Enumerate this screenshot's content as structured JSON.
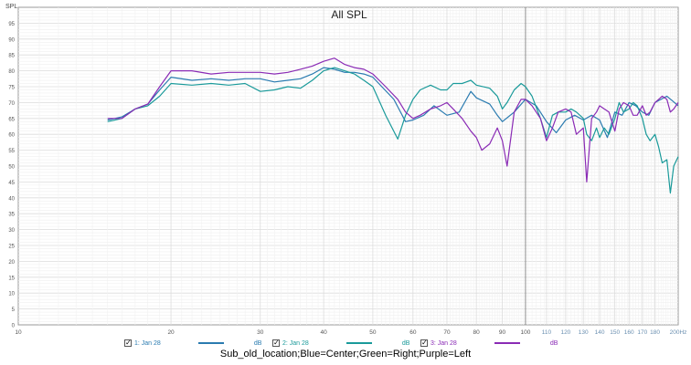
{
  "chart_data": {
    "type": "line",
    "title": "All SPL",
    "ylabel": "SPL",
    "x_unit": "Hz",
    "x_scale": "log",
    "xlim": [
      10,
      200
    ],
    "ylim": [
      0,
      100
    ],
    "grid": true,
    "x_ticks": [
      10,
      20,
      30,
      40,
      50,
      60,
      70,
      80,
      90,
      100,
      110,
      120,
      130,
      140,
      150,
      160,
      170,
      180,
      200
    ],
    "x_tick_labels": [
      "10",
      "20",
      "30",
      "40",
      "50",
      "60",
      "70",
      "80",
      "90",
      "100",
      "110",
      "120",
      "130",
      "140",
      "150",
      "160",
      "170",
      "180",
      "200Hz"
    ],
    "y_ticks": [
      0,
      5,
      10,
      15,
      20,
      25,
      30,
      35,
      40,
      45,
      50,
      55,
      60,
      65,
      70,
      75,
      80,
      85,
      90,
      95
    ],
    "series": [
      {
        "name": "1: Jan 28",
        "color": "#2a7bb0",
        "unit": "dB",
        "x": [
          15,
          16,
          17,
          18,
          19,
          20,
          22,
          24,
          26,
          28,
          30,
          32,
          34,
          36,
          38,
          40,
          42,
          44,
          46,
          48,
          50,
          55,
          58,
          60,
          63,
          66,
          70,
          74,
          78,
          80,
          85,
          88,
          90,
          95,
          100,
          105,
          110,
          115,
          120,
          125,
          130,
          135,
          140,
          145,
          150,
          155,
          160,
          165,
          170,
          175,
          180,
          185,
          190,
          195,
          200
        ],
        "values": [
          64.5,
          65.5,
          68,
          69.5,
          74,
          78,
          77,
          77.5,
          77,
          77.5,
          77.5,
          76.5,
          77,
          77.5,
          79,
          81,
          80.5,
          79.5,
          79.5,
          79,
          78,
          71,
          64,
          64.5,
          66,
          69,
          66,
          67,
          73.5,
          71.5,
          69.5,
          66,
          64,
          67,
          71,
          69,
          64,
          60.5,
          64.5,
          66,
          64.5,
          66,
          64.5,
          59,
          67,
          66,
          70,
          69,
          67,
          66,
          70,
          71,
          72,
          70.5,
          69
        ]
      },
      {
        "name": "2: Jan 28",
        "color": "#1a9a9a",
        "unit": "dB",
        "x": [
          15,
          16,
          17,
          18,
          19,
          20,
          22,
          24,
          26,
          28,
          30,
          32,
          34,
          36,
          38,
          40,
          42,
          44,
          46,
          48,
          50,
          53,
          56,
          58,
          60,
          62,
          65,
          68,
          70,
          72,
          75,
          78,
          80,
          85,
          88,
          90,
          92,
          95,
          98,
          100,
          103,
          107,
          110,
          113,
          116,
          120,
          123,
          126,
          130,
          132,
          135,
          138,
          140,
          143,
          146,
          150,
          153,
          156,
          160,
          163,
          166,
          170,
          173,
          176,
          180,
          183,
          186,
          190,
          193,
          196,
          200
        ],
        "values": [
          64,
          65,
          68,
          69,
          72,
          76,
          75.5,
          76,
          75.5,
          76,
          73.5,
          74,
          75,
          74.5,
          77,
          80,
          81,
          80,
          79,
          77,
          75,
          66,
          58.5,
          66,
          71,
          74,
          75.5,
          74,
          74,
          76,
          76,
          77,
          75.5,
          74.5,
          72,
          68,
          70,
          74,
          76,
          75,
          72,
          65,
          59,
          66,
          67,
          67,
          68,
          67,
          65,
          60,
          58,
          62,
          59,
          62,
          60,
          65,
          70,
          67,
          68,
          70,
          69,
          65,
          60,
          58,
          60,
          56,
          51,
          52,
          41.5,
          50,
          53
        ]
      },
      {
        "name": "3: Jan 28",
        "color": "#8a2bb5",
        "unit": "dB",
        "x": [
          15,
          16,
          17,
          18,
          19,
          20,
          22,
          24,
          26,
          28,
          30,
          32,
          34,
          36,
          38,
          40,
          42,
          44,
          46,
          48,
          50,
          53,
          56,
          58,
          60,
          62,
          65,
          68,
          70,
          72,
          75,
          78,
          80,
          82,
          85,
          88,
          90,
          92,
          95,
          98,
          100,
          103,
          107,
          110,
          113,
          116,
          120,
          123,
          126,
          130,
          132,
          135,
          138,
          140,
          143,
          146,
          150,
          153,
          156,
          160,
          163,
          166,
          170,
          173,
          176,
          180,
          183,
          186,
          190,
          193,
          196,
          200
        ],
        "values": [
          65,
          65,
          68,
          69.5,
          75,
          80,
          80,
          79,
          79.5,
          79.5,
          79.5,
          79,
          79.5,
          80.5,
          81.5,
          83,
          84,
          82,
          81,
          80.5,
          79,
          75,
          71,
          67,
          65,
          66,
          68,
          69,
          70,
          68,
          65,
          61,
          59,
          55,
          57,
          62,
          58,
          50,
          67,
          71,
          71,
          69,
          65,
          58,
          62,
          67,
          68,
          67,
          60,
          62,
          45,
          65,
          67,
          69,
          68,
          67,
          61,
          68,
          70,
          69,
          66,
          66,
          69,
          66,
          67,
          70,
          71,
          72,
          71,
          67,
          68,
          70
        ]
      }
    ],
    "legend_position": "bottom"
  },
  "caption": "Sub_old_location;Blue=Center;Green=Right;Purple=Left",
  "legend_check": "✓"
}
